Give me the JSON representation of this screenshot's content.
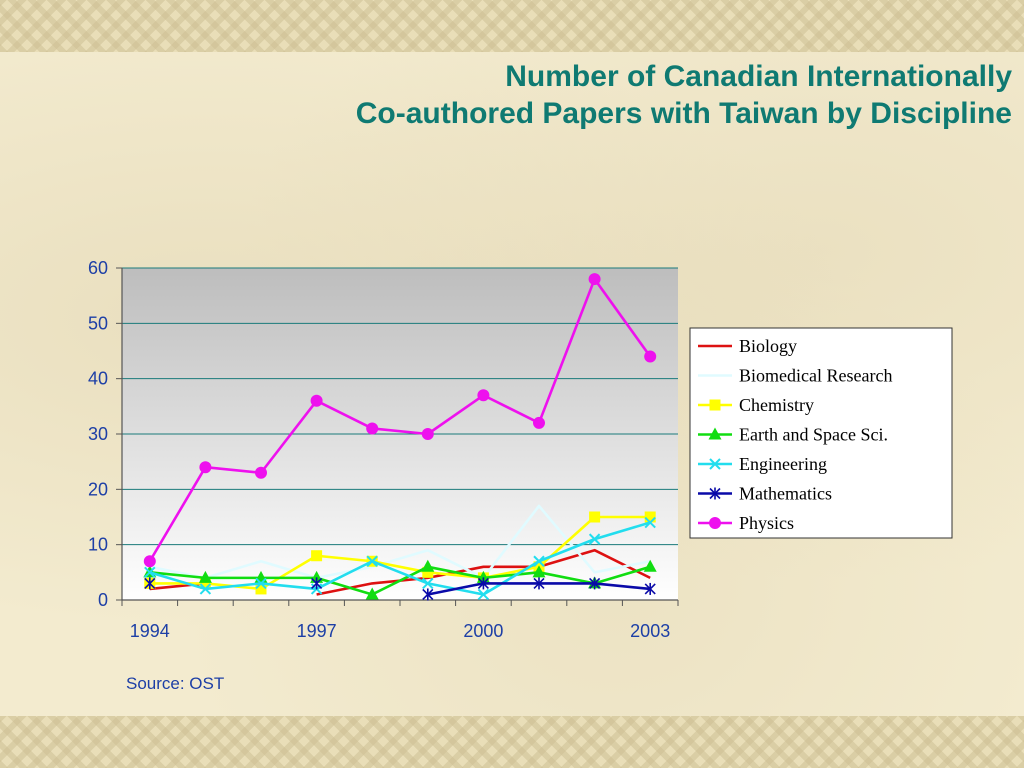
{
  "title": {
    "line1": "Number of Canadian Internationally",
    "line2": "Co-authored Papers with Taiwan by Discipline"
  },
  "source": "Source: OST",
  "colors": {
    "title": "#0f7a72",
    "axis_text": "#1d3fa6",
    "gridline": "#1a7a7a"
  },
  "chart_data": {
    "type": "line",
    "x": [
      1994,
      1995,
      1996,
      1997,
      1998,
      1999,
      2000,
      2001,
      2002,
      2003
    ],
    "x_tick_labels": [
      "1994",
      "1997",
      "2000",
      "2003"
    ],
    "x_tick_values": [
      1994,
      1997,
      2000,
      2003
    ],
    "ylim": [
      0,
      60
    ],
    "y_ticks": [
      0,
      10,
      20,
      30,
      40,
      50,
      60
    ],
    "grid": true,
    "legend_position": "right",
    "series": [
      {
        "name": "Biology",
        "color": "#dd1111",
        "marker": "none",
        "values": [
          2,
          3,
          null,
          1,
          3,
          4,
          6,
          6,
          9,
          4
        ]
      },
      {
        "name": "Biomedical Research",
        "color": "#e0fbff",
        "marker": "none",
        "values": [
          6,
          4,
          7,
          4,
          6,
          9,
          4,
          17,
          5,
          7
        ]
      },
      {
        "name": "Chemistry",
        "color": "#ffff00",
        "marker": "square",
        "values": [
          3,
          3,
          2,
          8,
          7,
          5,
          4,
          6,
          15,
          15
        ]
      },
      {
        "name": "Earth and Space Sci.",
        "color": "#11dd11",
        "marker": "triangle",
        "values": [
          5,
          4,
          4,
          4,
          1,
          6,
          4,
          5,
          3,
          6
        ]
      },
      {
        "name": "Engineering",
        "color": "#22ddee",
        "marker": "x",
        "values": [
          5,
          2,
          3,
          2,
          7,
          3,
          1,
          7,
          11,
          14
        ]
      },
      {
        "name": "Mathematics",
        "color": "#0a0aa8",
        "marker": "asterisk",
        "values": [
          3,
          null,
          null,
          3,
          null,
          1,
          3,
          3,
          3,
          2
        ]
      },
      {
        "name": "Physics",
        "color": "#ee11ee",
        "marker": "circle",
        "values": [
          7,
          24,
          23,
          36,
          31,
          30,
          37,
          32,
          58,
          44
        ]
      }
    ]
  }
}
